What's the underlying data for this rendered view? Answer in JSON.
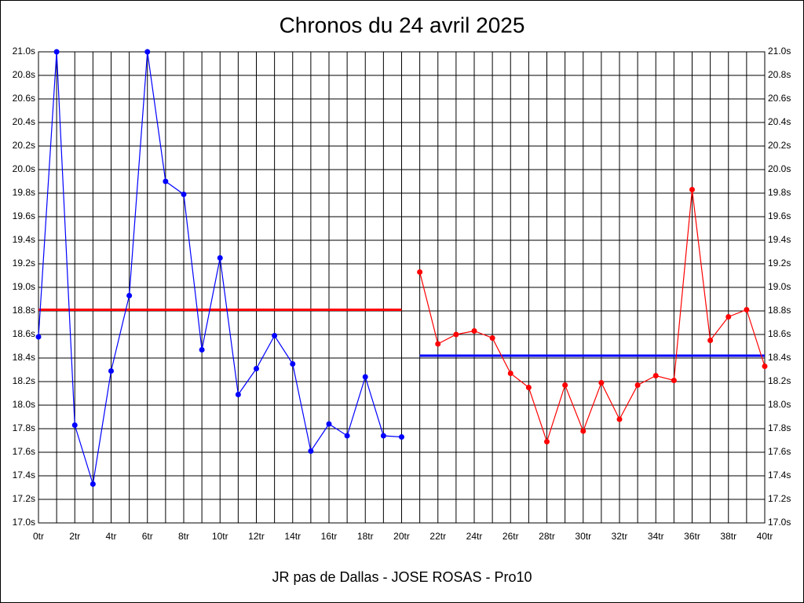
{
  "chart_data": {
    "type": "line",
    "title": "Chronos du 24 avril 2025",
    "subtitle": "JR pas de Dallas - JOSE ROSAS - Pro10",
    "series": [
      {
        "color": "#0000ff",
        "x": [
          0,
          1,
          2,
          3,
          4,
          5,
          6,
          7,
          8,
          9,
          10,
          11,
          12,
          13,
          14,
          15,
          16,
          17,
          18,
          19,
          20
        ],
        "values": [
          18.58,
          21.0,
          17.83,
          17.33,
          18.29,
          18.93,
          21.0,
          19.9,
          19.79,
          18.47,
          19.25,
          18.09,
          18.31,
          18.59,
          18.35,
          17.61,
          17.84,
          17.74,
          18.24,
          17.74,
          17.73
        ]
      },
      {
        "color": "#ff0000",
        "x": [
          21,
          22,
          23,
          24,
          25,
          26,
          27,
          28,
          29,
          30,
          31,
          32,
          33,
          34,
          35,
          36,
          37,
          38,
          39,
          40
        ],
        "values": [
          19.13,
          18.52,
          18.6,
          18.63,
          18.57,
          18.27,
          18.15,
          17.69,
          18.17,
          17.78,
          18.19,
          17.88,
          18.17,
          18.25,
          18.21,
          19.83,
          18.55,
          18.75,
          18.81,
          18.33
        ]
      }
    ],
    "reference_lines": [
      {
        "color": "#ff0000",
        "value": 18.81,
        "x": [
          0,
          20
        ]
      },
      {
        "color": "#0000ff",
        "value": 18.42,
        "x": [
          21,
          40
        ]
      }
    ],
    "xlim": [
      0,
      40
    ],
    "ylim": [
      17.0,
      21.0
    ],
    "xticks": [
      {
        "value": 0,
        "label": "0tr"
      },
      {
        "value": 2,
        "label": "2tr"
      },
      {
        "value": 4,
        "label": "4tr"
      },
      {
        "value": 6,
        "label": "6tr"
      },
      {
        "value": 8,
        "label": "8tr"
      },
      {
        "value": 10,
        "label": "10tr"
      },
      {
        "value": 12,
        "label": "12tr"
      },
      {
        "value": 14,
        "label": "14tr"
      },
      {
        "value": 16,
        "label": "16tr"
      },
      {
        "value": 18,
        "label": "18tr"
      },
      {
        "value": 20,
        "label": "20tr"
      },
      {
        "value": 22,
        "label": "22tr"
      },
      {
        "value": 24,
        "label": "24tr"
      },
      {
        "value": 26,
        "label": "26tr"
      },
      {
        "value": 28,
        "label": "28tr"
      },
      {
        "value": 30,
        "label": "30tr"
      },
      {
        "value": 32,
        "label": "32tr"
      },
      {
        "value": 34,
        "label": "34tr"
      },
      {
        "value": 36,
        "label": "36tr"
      },
      {
        "value": 38,
        "label": "38tr"
      },
      {
        "value": 40,
        "label": "40tr"
      }
    ],
    "x_minor_grid": [
      1,
      3,
      5,
      7,
      9,
      11,
      13,
      15,
      17,
      19,
      21,
      23,
      25,
      27,
      29,
      31,
      33,
      35,
      37,
      39
    ],
    "yticks": [
      {
        "value": 17.0,
        "label": "17.0s"
      },
      {
        "value": 17.2,
        "label": "17.2s"
      },
      {
        "value": 17.4,
        "label": "17.4s"
      },
      {
        "value": 17.6,
        "label": "17.6s"
      },
      {
        "value": 17.8,
        "label": "17.8s"
      },
      {
        "value": 18.0,
        "label": "18.0s"
      },
      {
        "value": 18.2,
        "label": "18.2s"
      },
      {
        "value": 18.4,
        "label": "18.4s"
      },
      {
        "value": 18.6,
        "label": "18.6s"
      },
      {
        "value": 18.8,
        "label": "18.8s"
      },
      {
        "value": 19.0,
        "label": "19.0s"
      },
      {
        "value": 19.2,
        "label": "19.2s"
      },
      {
        "value": 19.4,
        "label": "19.4s"
      },
      {
        "value": 19.6,
        "label": "19.6s"
      },
      {
        "value": 19.8,
        "label": "19.8s"
      },
      {
        "value": 20.0,
        "label": "20.0s"
      },
      {
        "value": 20.2,
        "label": "20.2s"
      },
      {
        "value": 20.4,
        "label": "20.4s"
      },
      {
        "value": 20.6,
        "label": "20.6s"
      },
      {
        "value": 20.8,
        "label": "20.8s"
      },
      {
        "value": 21.0,
        "label": "21.0s"
      }
    ],
    "grid": true
  }
}
